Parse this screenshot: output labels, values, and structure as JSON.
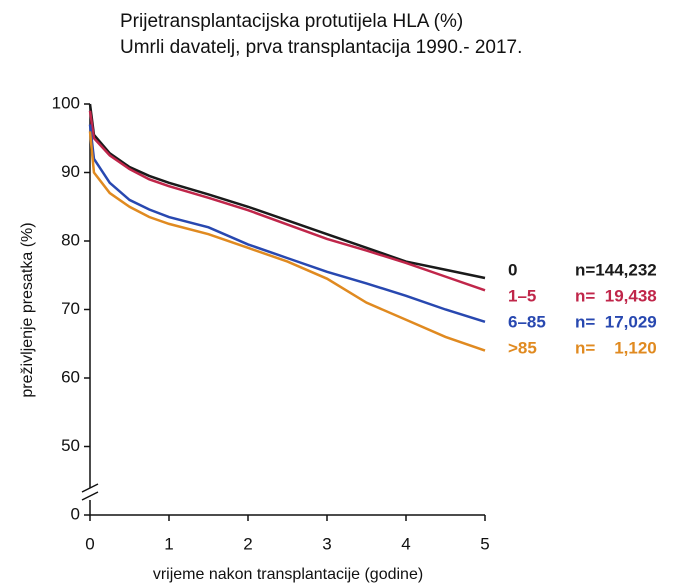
{
  "chart_data": {
    "type": "line",
    "title": "Prijetransplantacijska protutijela HLA (%)",
    "subtitle": "Umrli davatelj, prva transplantacija 1990.- 2017.",
    "x_label": "vrijeme nakon transplantacije  (godine)",
    "y_label": "preživljenje presatka (%)",
    "x": [
      0,
      0.05,
      0.25,
      0.5,
      0.75,
      1,
      1.5,
      2,
      2.5,
      3,
      3.5,
      4,
      4.5,
      5
    ],
    "xlim": [
      0,
      5
    ],
    "xticks": [
      0,
      1,
      2,
      3,
      4,
      5
    ],
    "ylim": [
      0,
      100
    ],
    "yticks": [
      0,
      50,
      60,
      70,
      80,
      90,
      100
    ],
    "y_break": [
      0,
      50
    ],
    "series": [
      {
        "name": "0",
        "n_label": "n=144,232",
        "color": "#1a1a1a",
        "values": [
          100,
          95.5,
          92.8,
          90.8,
          89.5,
          88.5,
          86.8,
          85,
          83,
          81,
          79,
          77,
          75.8,
          74.6
        ]
      },
      {
        "name": "1–5",
        "n_label": "n=  19,438",
        "color": "#c0264a",
        "values": [
          99,
          95,
          92.5,
          90.5,
          89,
          88,
          86.3,
          84.5,
          82.4,
          80.3,
          78.6,
          76.8,
          74.8,
          72.8
        ]
      },
      {
        "name": "6–85",
        "n_label": "n=  17,029",
        "color": "#2848b0",
        "values": [
          97,
          92,
          88.5,
          86,
          84.6,
          83.5,
          82,
          79.5,
          77.5,
          75.5,
          73.8,
          72,
          70,
          68.2
        ]
      },
      {
        "name": ">85",
        "n_label": "n=    1,120",
        "color": "#e08a20",
        "values": [
          96,
          90,
          87,
          85,
          83.5,
          82.5,
          81,
          79,
          77,
          74.5,
          71,
          68.5,
          66,
          64
        ]
      }
    ]
  }
}
